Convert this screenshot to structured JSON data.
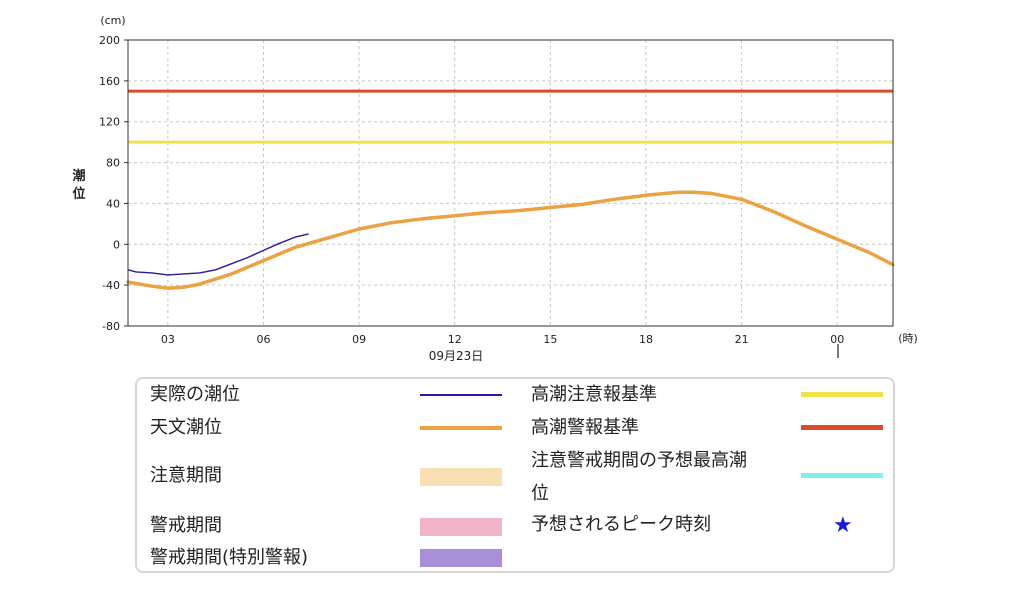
{
  "chart_data": {
    "type": "line",
    "ylabel": "潮位",
    "yunit": "(cm)",
    "xunit": "(時)",
    "date_label": "09月23日",
    "ylim": [
      -80,
      200
    ],
    "yticks": [
      200,
      160,
      120,
      80,
      40,
      0,
      -40,
      -80
    ],
    "x_hours_range": [
      1.75,
      25.75
    ],
    "xticks": [
      {
        "hour": 3,
        "label": "03"
      },
      {
        "hour": 6,
        "label": "06"
      },
      {
        "hour": 9,
        "label": "09"
      },
      {
        "hour": 12,
        "label": "12"
      },
      {
        "hour": 15,
        "label": "15"
      },
      {
        "hour": 18,
        "label": "18"
      },
      {
        "hour": 21,
        "label": "21"
      },
      {
        "hour": 24,
        "label": "00"
      }
    ],
    "grid": true,
    "thresholds": [
      {
        "name": "高潮警報基準",
        "value": 150,
        "color": "#dd4b2f"
      },
      {
        "name": "高潮注意報基準",
        "value": 100,
        "color": "#f0e24a"
      }
    ],
    "series": [
      {
        "name": "天文潮位",
        "color": "#eca143",
        "x": [
          1.75,
          2.5,
          3,
          3.5,
          4,
          5,
          6,
          7,
          8,
          9,
          10,
          11,
          12,
          13,
          14,
          15,
          16,
          17,
          18,
          19,
          19.5,
          20,
          21,
          22,
          23,
          24,
          25,
          25.75
        ],
        "y": [
          -37,
          -41,
          -43,
          -42,
          -39,
          -29,
          -16,
          -3,
          6,
          15,
          21,
          25,
          28,
          31,
          33,
          36,
          39,
          44,
          48,
          51,
          51,
          50,
          44,
          32,
          18,
          5,
          -8,
          -20
        ]
      },
      {
        "name": "実際の潮位",
        "color": "#2a1a9a",
        "x": [
          1.75,
          2,
          2.5,
          3,
          3.5,
          4,
          4.5,
          5,
          5.5,
          6,
          6.5,
          7,
          7.4
        ],
        "y": [
          -25,
          -27,
          -28,
          -30,
          -29,
          -28,
          -25,
          -19,
          -13,
          -6,
          1,
          7,
          10
        ]
      }
    ],
    "legend": [
      {
        "label": "実際の潮位",
        "kind": "line",
        "color": "#2a1a9a"
      },
      {
        "label": "天文潮位",
        "kind": "line",
        "color": "#eca143"
      },
      {
        "label": "注意期間",
        "kind": "box",
        "color": "#f8dfb4"
      },
      {
        "label": "警戒期間",
        "kind": "box",
        "color": "#f2b4cb"
      },
      {
        "label": "警戒期間(特別警報)",
        "kind": "box",
        "color": "#a98fd8"
      },
      {
        "label": "高潮注意報基準",
        "kind": "line",
        "color": "#f0e24a"
      },
      {
        "label": "高潮警報基準",
        "kind": "line",
        "color": "#dd4b2f"
      },
      {
        "label_line1": "注意警戒期間の予想最高潮",
        "label_line2": "位",
        "kind": "line",
        "color": "#7ff0f0"
      },
      {
        "label": "予想されるピーク時刻",
        "kind": "star",
        "color": "#1a1ad9",
        "glyph": "★"
      }
    ]
  }
}
